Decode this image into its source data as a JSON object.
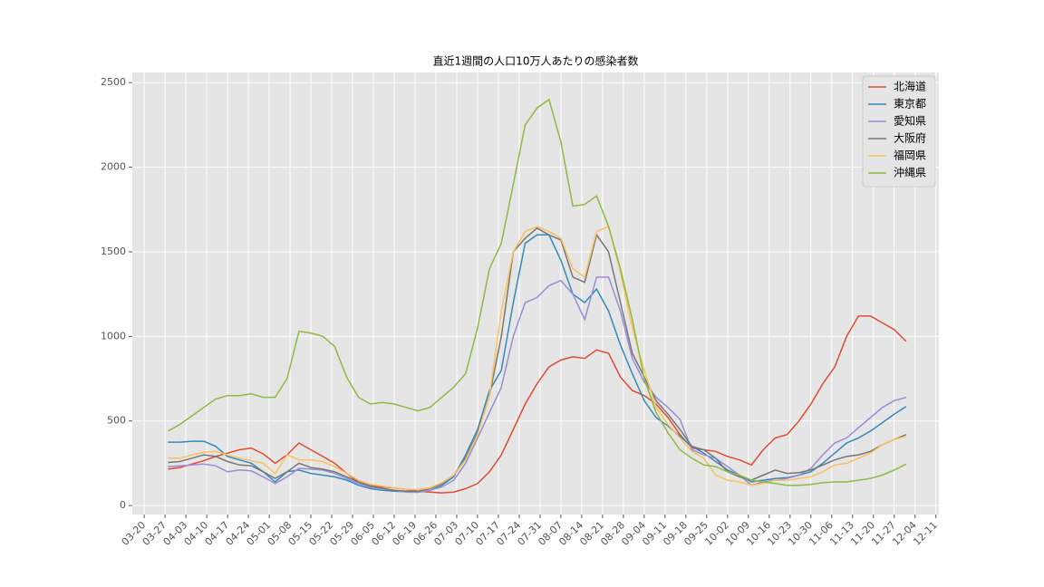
{
  "chart_data": {
    "type": "line",
    "title": "直近1週間の人口10万人あたりの感染者数",
    "x": [
      "03-28",
      "04-01",
      "04-05",
      "04-09",
      "04-13",
      "04-17",
      "04-21",
      "04-25",
      "04-29",
      "05-03",
      "05-07",
      "05-11",
      "05-15",
      "05-19",
      "05-23",
      "05-27",
      "05-31",
      "06-04",
      "06-08",
      "06-12",
      "06-16",
      "06-20",
      "06-24",
      "06-28",
      "07-02",
      "07-06",
      "07-10",
      "07-14",
      "07-18",
      "07-22",
      "07-26",
      "07-30",
      "08-03",
      "08-07",
      "08-11",
      "08-15",
      "08-19",
      "08-23",
      "08-27",
      "08-31",
      "09-04",
      "09-08",
      "09-12",
      "09-16",
      "09-20",
      "09-24",
      "09-28",
      "10-02",
      "10-06",
      "10-10",
      "10-14",
      "10-18",
      "10-22",
      "10-26",
      "10-30",
      "11-03",
      "11-07",
      "11-11",
      "11-15",
      "11-19",
      "11-23",
      "11-27",
      "12-01"
    ],
    "series": [
      {
        "name": "北海道",
        "color": "#E24A33",
        "values": [
          215,
          225,
          245,
          265,
          290,
          310,
          330,
          340,
          305,
          250,
          300,
          370,
          330,
          290,
          250,
          190,
          140,
          120,
          110,
          105,
          95,
          85,
          80,
          75,
          80,
          100,
          130,
          200,
          300,
          450,
          600,
          720,
          820,
          860,
          880,
          870,
          920,
          900,
          760,
          680,
          650,
          600,
          520,
          420,
          340,
          330,
          320,
          290,
          270,
          240,
          330,
          400,
          420,
          500,
          600,
          720,
          820,
          1000,
          1120,
          1120,
          1080,
          1040,
          970
        ]
      },
      {
        "name": "東京都",
        "color": "#348ABD",
        "values": [
          375,
          375,
          380,
          380,
          350,
          290,
          270,
          250,
          200,
          140,
          200,
          210,
          190,
          180,
          170,
          150,
          120,
          100,
          90,
          85,
          82,
          80,
          90,
          120,
          170,
          300,
          450,
          680,
          800,
          1200,
          1550,
          1600,
          1600,
          1450,
          1250,
          1200,
          1280,
          1150,
          950,
          780,
          620,
          520,
          470,
          410,
          350,
          310,
          260,
          210,
          180,
          140,
          150,
          160,
          165,
          180,
          200,
          250,
          310,
          370,
          400,
          440,
          490,
          540,
          585
        ]
      },
      {
        "name": "愛知県",
        "color": "#988ED5",
        "values": [
          230,
          235,
          240,
          245,
          235,
          200,
          210,
          205,
          170,
          130,
          170,
          220,
          215,
          210,
          190,
          160,
          130,
          110,
          100,
          90,
          80,
          78,
          90,
          110,
          150,
          250,
          400,
          550,
          700,
          1000,
          1200,
          1230,
          1300,
          1330,
          1250,
          1100,
          1350,
          1350,
          1150,
          870,
          730,
          640,
          580,
          510,
          330,
          300,
          280,
          230,
          180,
          120,
          140,
          150,
          160,
          180,
          220,
          300,
          370,
          400,
          460,
          520,
          580,
          620,
          640
        ]
      },
      {
        "name": "大阪府",
        "color": "#777777",
        "values": [
          255,
          260,
          280,
          300,
          290,
          260,
          240,
          235,
          200,
          160,
          200,
          250,
          225,
          215,
          200,
          170,
          140,
          115,
          100,
          90,
          85,
          85,
          100,
          130,
          180,
          280,
          430,
          650,
          1000,
          1500,
          1580,
          1640,
          1600,
          1570,
          1350,
          1320,
          1600,
          1500,
          1200,
          900,
          760,
          620,
          540,
          450,
          350,
          330,
          280,
          200,
          170,
          150,
          180,
          210,
          190,
          195,
          210,
          240,
          270,
          290,
          300,
          320,
          360,
          390,
          420
        ]
      },
      {
        "name": "福岡県",
        "color": "#FBC15E",
        "values": [
          280,
          280,
          300,
          315,
          320,
          300,
          280,
          265,
          250,
          190,
          300,
          270,
          270,
          260,
          230,
          190,
          150,
          125,
          115,
          105,
          95,
          95,
          105,
          135,
          180,
          270,
          420,
          650,
          1150,
          1500,
          1620,
          1650,
          1620,
          1580,
          1400,
          1350,
          1620,
          1650,
          1380,
          1050,
          800,
          580,
          480,
          400,
          320,
          280,
          180,
          150,
          140,
          120,
          130,
          150,
          150,
          160,
          170,
          200,
          240,
          250,
          280,
          310,
          360,
          390,
          410
        ]
      },
      {
        "name": "沖縄県",
        "color": "#8EBA42",
        "values": [
          440,
          480,
          530,
          580,
          630,
          650,
          650,
          660,
          640,
          640,
          750,
          1030,
          1020,
          1000,
          940,
          760,
          640,
          600,
          610,
          600,
          580,
          560,
          580,
          640,
          700,
          780,
          1050,
          1400,
          1550,
          1900,
          2250,
          2350,
          2400,
          2150,
          1770,
          1780,
          1830,
          1650,
          1400,
          1100,
          750,
          550,
          430,
          330,
          280,
          240,
          230,
          200,
          180,
          150,
          140,
          130,
          120,
          120,
          125,
          135,
          140,
          140,
          150,
          160,
          180,
          210,
          245
        ]
      }
    ],
    "xlim": [
      "03-16",
      "12-12"
    ],
    "xticks": [
      "03-20",
      "03-27",
      "04-03",
      "04-10",
      "04-17",
      "04-24",
      "05-01",
      "05-08",
      "05-15",
      "05-22",
      "05-29",
      "06-05",
      "06-12",
      "06-19",
      "06-26",
      "07-03",
      "07-10",
      "07-17",
      "07-24",
      "07-31",
      "08-07",
      "08-14",
      "08-21",
      "08-28",
      "09-04",
      "09-11",
      "09-18",
      "09-25",
      "10-02",
      "10-09",
      "10-16",
      "10-23",
      "10-30",
      "11-06",
      "11-13",
      "11-20",
      "11-27",
      "12-04",
      "12-11"
    ],
    "ylim": [
      -53,
      2560
    ],
    "yticks": [
      0,
      500,
      1000,
      1500,
      2000,
      2500
    ],
    "grid": true,
    "legend": "upper right"
  }
}
